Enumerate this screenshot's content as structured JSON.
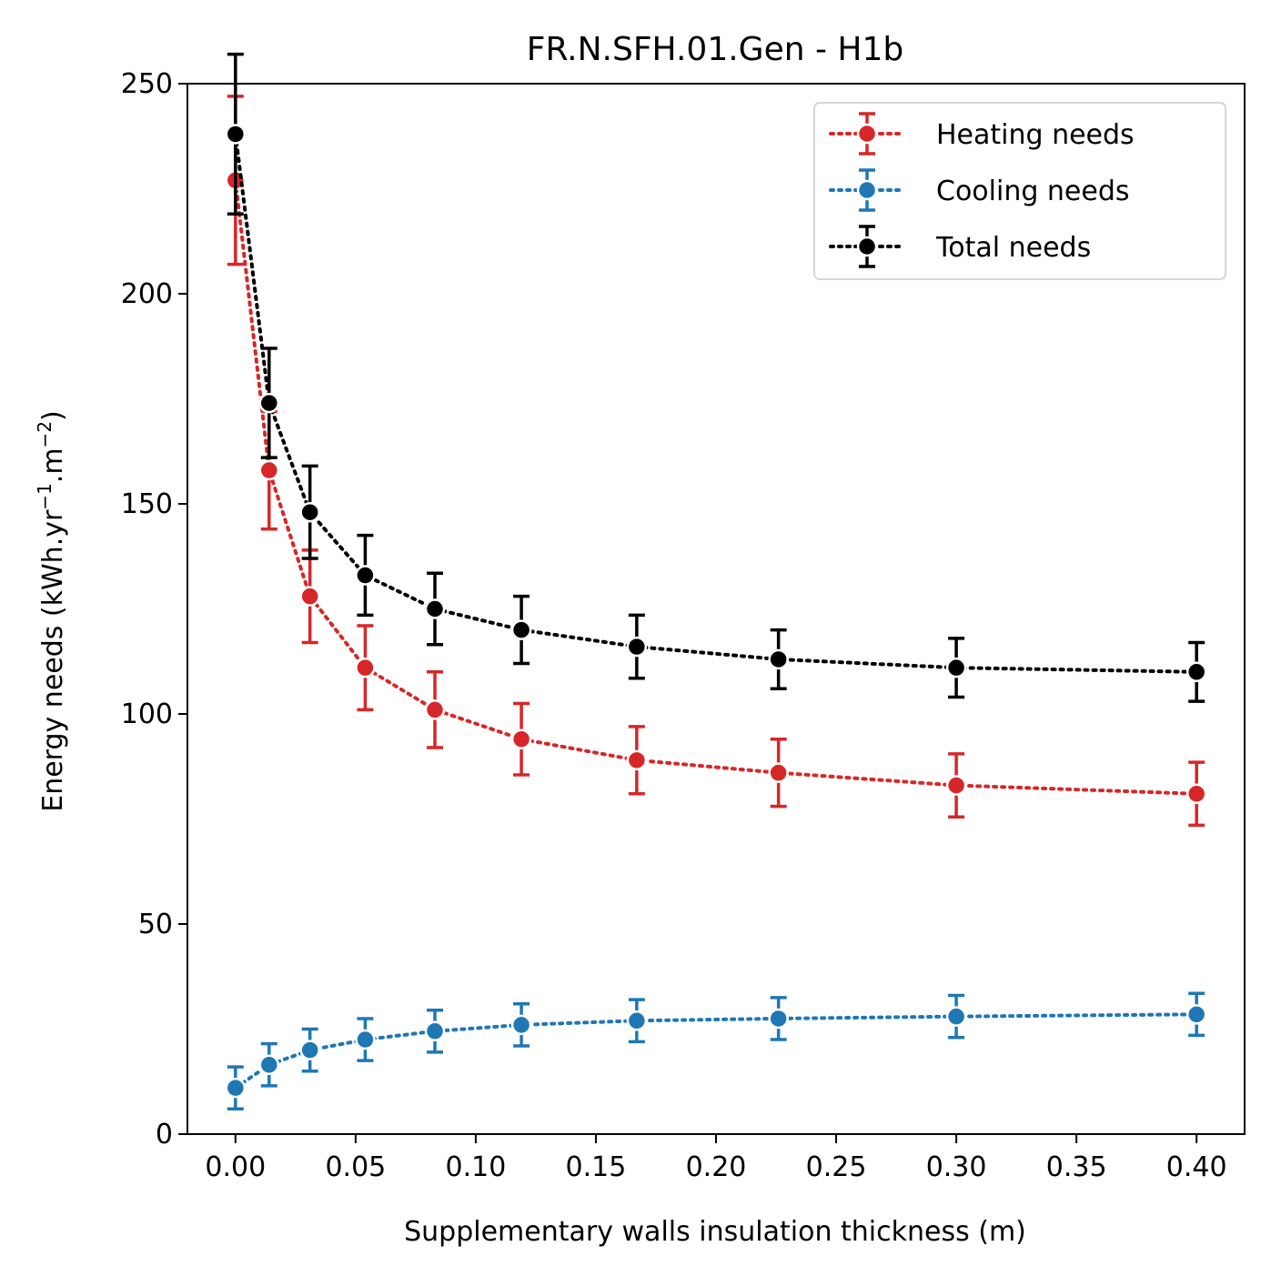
{
  "chart_data": {
    "type": "line",
    "title": "FR.N.SFH.01.Gen - H1b",
    "xlabel": "Supplementary walls insulation thickness (m)",
    "ylabel_main": "Energy needs (kWh.yr",
    "ylabel_sup1": "−1",
    "ylabel_mid": ".m",
    "ylabel_sup2": "−2",
    "ylabel_end": ")",
    "xlim": [
      -0.02,
      0.42
    ],
    "ylim": [
      0,
      250
    ],
    "xticks": [
      0.0,
      0.05,
      0.1,
      0.15,
      0.2,
      0.25,
      0.3,
      0.35,
      0.4
    ],
    "xtick_labels": [
      "0.00",
      "0.05",
      "0.10",
      "0.15",
      "0.20",
      "0.25",
      "0.30",
      "0.35",
      "0.40"
    ],
    "yticks": [
      0,
      50,
      100,
      150,
      200,
      250
    ],
    "ytick_labels": [
      "0",
      "50",
      "100",
      "150",
      "200",
      "250"
    ],
    "grid": false,
    "legend_position": "top-right",
    "x": [
      0.0,
      0.014,
      0.031,
      0.054,
      0.083,
      0.119,
      0.167,
      0.226,
      0.3,
      0.4
    ],
    "series": [
      {
        "name": "Heating needs",
        "color": "#d62728",
        "values": [
          227,
          158,
          128,
          111,
          101,
          94,
          89,
          86,
          83,
          81
        ],
        "errors": [
          20,
          14,
          11,
          10,
          9,
          8.5,
          8,
          8,
          7.5,
          7.5
        ]
      },
      {
        "name": "Cooling needs",
        "color": "#1f77b4",
        "values": [
          11,
          16.5,
          20,
          22.5,
          24.5,
          26,
          27,
          27.5,
          28,
          28.5
        ],
        "errors": [
          5,
          5,
          5,
          5,
          5,
          5,
          5,
          5,
          5,
          5
        ]
      },
      {
        "name": "Total needs",
        "color": "#000000",
        "values": [
          238,
          174,
          148,
          133,
          125,
          120,
          116,
          113,
          111,
          110
        ],
        "errors": [
          19,
          13,
          11,
          9.5,
          8.5,
          8,
          7.5,
          7,
          7,
          7
        ]
      }
    ]
  }
}
